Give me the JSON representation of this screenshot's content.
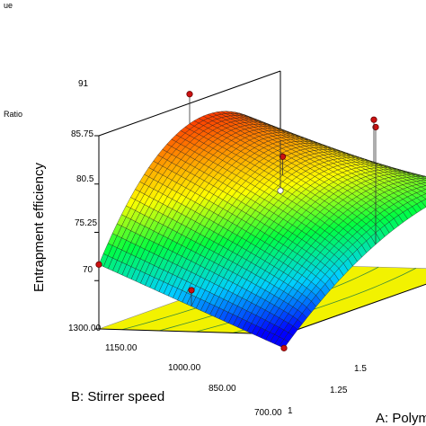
{
  "legend_fragments": {
    "top": "ue",
    "ratio": "Ratio"
  },
  "chart_data": {
    "type": "surface",
    "title": "",
    "zlabel": "Entrapment efficiency",
    "xlabel": "A: Polym",
    "ylabel": "B: Stirrer speed",
    "z_ticks": [
      "91",
      "85.75",
      "80.5",
      "75.25",
      "70"
    ],
    "zlim": [
      70,
      91
    ],
    "y_ticks": [
      "1300.00",
      "1150.00",
      "1000.00",
      "850.00",
      "700.00"
    ],
    "ylim": [
      700,
      1300
    ],
    "x_ticks": [
      "1",
      "1.25",
      "1.5"
    ],
    "xlim": [
      1,
      2
    ],
    "surface": {
      "z_at_low_A_low_B": 68.5,
      "z_at_high_A_low_B": 79.0,
      "z_at_low_A_high_B": 77.0,
      "z_at_high_A_high_B": 83.5,
      "z_max": 91.0,
      "grid": 40
    },
    "design_points": [
      {
        "A": 1.0,
        "B": 700,
        "z": 68.5
      },
      {
        "A": 1.0,
        "B": 1000,
        "z": 74.5
      },
      {
        "A": 1.0,
        "B": 1300,
        "z": 77.0
      },
      {
        "A": 1.5,
        "B": 1000,
        "z": 85.5
      },
      {
        "A": 1.5,
        "B": 1300,
        "z": 92.0
      },
      {
        "A": 1.5,
        "B": 700,
        "z": 89.0
      },
      {
        "A": 2.0,
        "B": 1000,
        "z": 86.0
      },
      {
        "A": 2.0,
        "B": 1300,
        "z": 78.0
      }
    ],
    "colormap": [
      "#0000ff",
      "#00d0ff",
      "#00ff40",
      "#ffff00",
      "#ff8000",
      "#ff0000"
    ],
    "floor_color": "#f2f200",
    "grid": false
  }
}
